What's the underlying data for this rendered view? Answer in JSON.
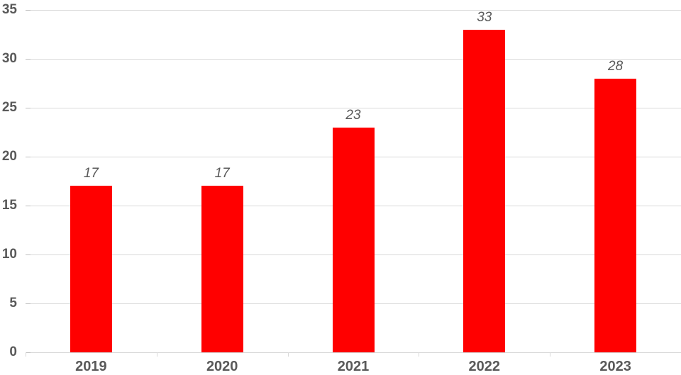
{
  "chart_data": {
    "type": "bar",
    "title": "",
    "xlabel": "",
    "ylabel": "",
    "categories": [
      "2019",
      "2020",
      "2021",
      "2022",
      "2023"
    ],
    "values": [
      17,
      17,
      23,
      33,
      28
    ],
    "data_labels": [
      "17",
      "17",
      "23",
      "33",
      "28"
    ],
    "ylim": [
      0,
      35
    ],
    "ytick_step": 5,
    "ytick_labels": [
      "0",
      "5",
      "10",
      "15",
      "20",
      "25",
      "30",
      "35"
    ],
    "grid": true,
    "legend": false,
    "colors": {
      "bar": "#ff0000",
      "gridline": "#d9d9d9",
      "axis_tick": "#bfbfbf",
      "text": "#595959",
      "background": "#ffffff"
    }
  }
}
